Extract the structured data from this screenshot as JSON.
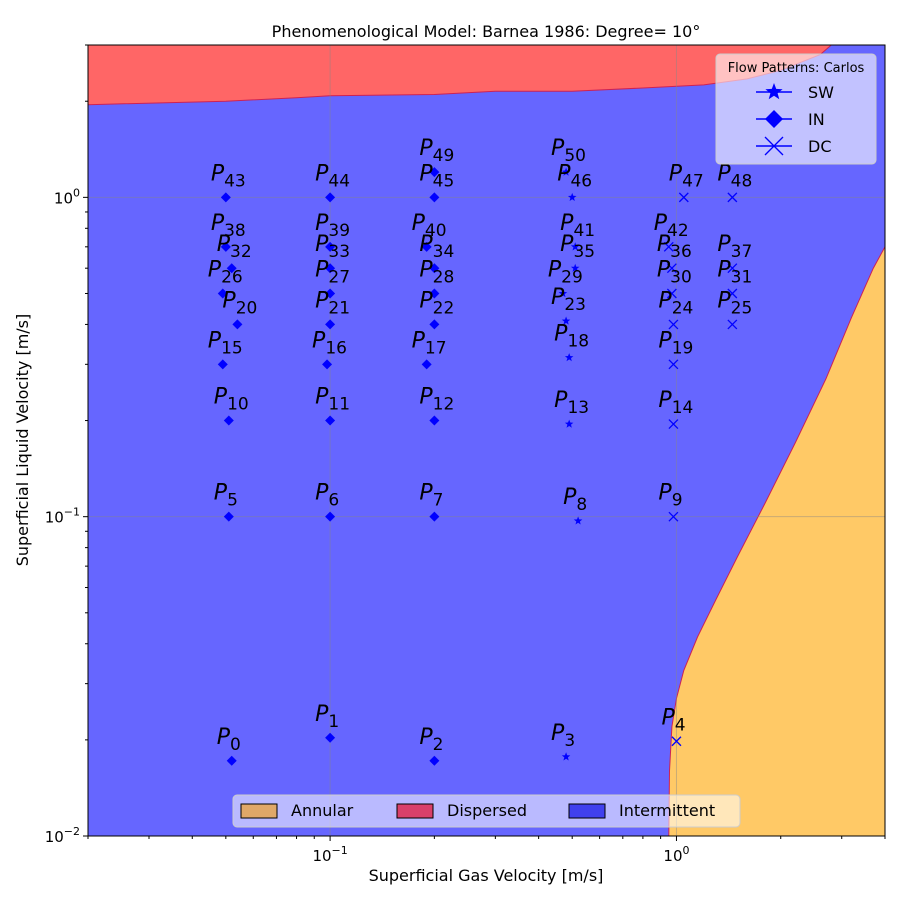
{
  "chart_data": {
    "type": "scatter",
    "title": "Phenomenological Model: Barnea 1986: Degree= 10°",
    "xlabel": "Superficial Gas Velocity [m/s]",
    "ylabel": "Superficial Liquid Velocity [m/s]",
    "x_scale": "log",
    "y_scale": "log",
    "xlim": [
      0.02,
      4.0
    ],
    "ylim": [
      0.01,
      3.0
    ],
    "grid": true,
    "x_ticks": [
      {
        "value": 0.1,
        "base": "10",
        "exp": "−1"
      },
      {
        "value": 1,
        "base": "10",
        "exp": "0"
      }
    ],
    "y_ticks": [
      {
        "value": 0.01,
        "base": "10",
        "exp": "−2"
      },
      {
        "value": 0.1,
        "base": "10",
        "exp": "−1"
      },
      {
        "value": 1,
        "base": "10",
        "exp": "0"
      }
    ],
    "regions": [
      {
        "name": "Annular",
        "color": "#ffc966"
      },
      {
        "name": "Dispersed",
        "color": "#ff6666"
      },
      {
        "name": "Intermittent",
        "color": "#6666ff"
      }
    ],
    "region_legend": {
      "location": "lower center",
      "entries": [
        {
          "name": "Annular",
          "color": "#e0a868"
        },
        {
          "name": "Dispersed",
          "color": "#d9406a"
        },
        {
          "name": "Intermittent",
          "color": "#4040ee"
        }
      ]
    },
    "annular_boundary": [
      [
        0.95,
        0.01
      ],
      [
        0.955,
        0.016
      ],
      [
        0.97,
        0.022
      ],
      [
        1.0,
        0.027
      ],
      [
        1.05,
        0.033
      ],
      [
        1.15,
        0.042
      ],
      [
        1.3,
        0.055
      ],
      [
        1.5,
        0.075
      ],
      [
        1.8,
        0.11
      ],
      [
        2.2,
        0.17
      ],
      [
        2.7,
        0.27
      ],
      [
        3.2,
        0.42
      ],
      [
        3.7,
        0.6
      ],
      [
        4.0,
        0.7
      ]
    ],
    "dispersed_boundary": [
      [
        0.02,
        1.95
      ],
      [
        0.05,
        2.0
      ],
      [
        0.08,
        2.05
      ],
      [
        0.1,
        2.08
      ],
      [
        0.2,
        2.1
      ],
      [
        0.3,
        2.15
      ],
      [
        0.5,
        2.15
      ],
      [
        0.8,
        2.2
      ],
      [
        1.2,
        2.25
      ],
      [
        1.6,
        2.35
      ],
      [
        2.0,
        2.5
      ],
      [
        2.6,
        2.8
      ],
      [
        2.8,
        3.0
      ]
    ],
    "marker_legend": {
      "title": "Flow Patterns: Carlos",
      "location": "upper right",
      "entries": [
        {
          "label": "SW",
          "marker": "star"
        },
        {
          "label": "IN",
          "marker": "diamond"
        },
        {
          "label": "DC",
          "marker": "x"
        }
      ]
    },
    "points": [
      {
        "label": "0",
        "x": 0.052,
        "y": 0.0172,
        "marker": "diamond"
      },
      {
        "label": "1",
        "x": 0.1,
        "y": 0.0203,
        "marker": "diamond"
      },
      {
        "label": "2",
        "x": 0.2,
        "y": 0.0172,
        "marker": "diamond"
      },
      {
        "label": "3",
        "x": 0.48,
        "y": 0.0177,
        "marker": "star"
      },
      {
        "label": "4",
        "x": 1.0,
        "y": 0.0198,
        "marker": "x"
      },
      {
        "label": "5",
        "x": 0.051,
        "y": 0.1,
        "marker": "diamond"
      },
      {
        "label": "6",
        "x": 0.1,
        "y": 0.1,
        "marker": "diamond"
      },
      {
        "label": "7",
        "x": 0.2,
        "y": 0.1,
        "marker": "diamond"
      },
      {
        "label": "8",
        "x": 0.52,
        "y": 0.097,
        "marker": "star"
      },
      {
        "label": "9",
        "x": 0.98,
        "y": 0.1,
        "marker": "x"
      },
      {
        "label": "10",
        "x": 0.051,
        "y": 0.2,
        "marker": "diamond"
      },
      {
        "label": "11",
        "x": 0.1,
        "y": 0.2,
        "marker": "diamond"
      },
      {
        "label": "12",
        "x": 0.2,
        "y": 0.2,
        "marker": "diamond"
      },
      {
        "label": "13",
        "x": 0.49,
        "y": 0.195,
        "marker": "star"
      },
      {
        "label": "14",
        "x": 0.98,
        "y": 0.195,
        "marker": "x"
      },
      {
        "label": "15",
        "x": 0.049,
        "y": 0.3,
        "marker": "diamond"
      },
      {
        "label": "16",
        "x": 0.098,
        "y": 0.3,
        "marker": "diamond"
      },
      {
        "label": "17",
        "x": 0.19,
        "y": 0.3,
        "marker": "diamond"
      },
      {
        "label": "18",
        "x": 0.49,
        "y": 0.315,
        "marker": "star"
      },
      {
        "label": "19",
        "x": 0.98,
        "y": 0.3,
        "marker": "x"
      },
      {
        "label": "20",
        "x": 0.054,
        "y": 0.4,
        "marker": "diamond"
      },
      {
        "label": "21",
        "x": 0.1,
        "y": 0.4,
        "marker": "diamond"
      },
      {
        "label": "22",
        "x": 0.2,
        "y": 0.4,
        "marker": "diamond"
      },
      {
        "label": "23",
        "x": 0.48,
        "y": 0.41,
        "marker": "star"
      },
      {
        "label": "24",
        "x": 0.98,
        "y": 0.4,
        "marker": "x"
      },
      {
        "label": "25",
        "x": 1.45,
        "y": 0.4,
        "marker": "x"
      },
      {
        "label": "26",
        "x": 0.049,
        "y": 0.5,
        "marker": "diamond"
      },
      {
        "label": "27",
        "x": 0.1,
        "y": 0.5,
        "marker": "diamond"
      },
      {
        "label": "28",
        "x": 0.2,
        "y": 0.5,
        "marker": "diamond"
      },
      {
        "label": "29",
        "x": 0.47,
        "y": 0.5,
        "marker": "star"
      },
      {
        "label": "30",
        "x": 0.97,
        "y": 0.5,
        "marker": "x"
      },
      {
        "label": "31",
        "x": 1.45,
        "y": 0.5,
        "marker": "x"
      },
      {
        "label": "32",
        "x": 0.052,
        "y": 0.6,
        "marker": "diamond"
      },
      {
        "label": "33",
        "x": 0.1,
        "y": 0.6,
        "marker": "diamond"
      },
      {
        "label": "34",
        "x": 0.2,
        "y": 0.6,
        "marker": "diamond"
      },
      {
        "label": "35",
        "x": 0.51,
        "y": 0.6,
        "marker": "star"
      },
      {
        "label": "36",
        "x": 0.97,
        "y": 0.6,
        "marker": "x"
      },
      {
        "label": "37",
        "x": 1.45,
        "y": 0.6,
        "marker": "x"
      },
      {
        "label": "38",
        "x": 0.05,
        "y": 0.7,
        "marker": "diamond"
      },
      {
        "label": "39",
        "x": 0.1,
        "y": 0.7,
        "marker": "diamond"
      },
      {
        "label": "40",
        "x": 0.19,
        "y": 0.7,
        "marker": "diamond"
      },
      {
        "label": "41",
        "x": 0.51,
        "y": 0.7,
        "marker": "star"
      },
      {
        "label": "42",
        "x": 0.95,
        "y": 0.7,
        "marker": "x"
      },
      {
        "label": "43",
        "x": 0.05,
        "y": 1.0,
        "marker": "diamond"
      },
      {
        "label": "44",
        "x": 0.1,
        "y": 1.0,
        "marker": "diamond"
      },
      {
        "label": "45",
        "x": 0.2,
        "y": 1.0,
        "marker": "diamond"
      },
      {
        "label": "46",
        "x": 0.5,
        "y": 1.0,
        "marker": "star"
      },
      {
        "label": "47",
        "x": 1.05,
        "y": 1.0,
        "marker": "x"
      },
      {
        "label": "48",
        "x": 1.45,
        "y": 1.0,
        "marker": "x"
      },
      {
        "label": "49",
        "x": 0.2,
        "y": 1.2,
        "marker": "diamond"
      },
      {
        "label": "50",
        "x": 0.48,
        "y": 1.2,
        "marker": "star"
      }
    ]
  }
}
